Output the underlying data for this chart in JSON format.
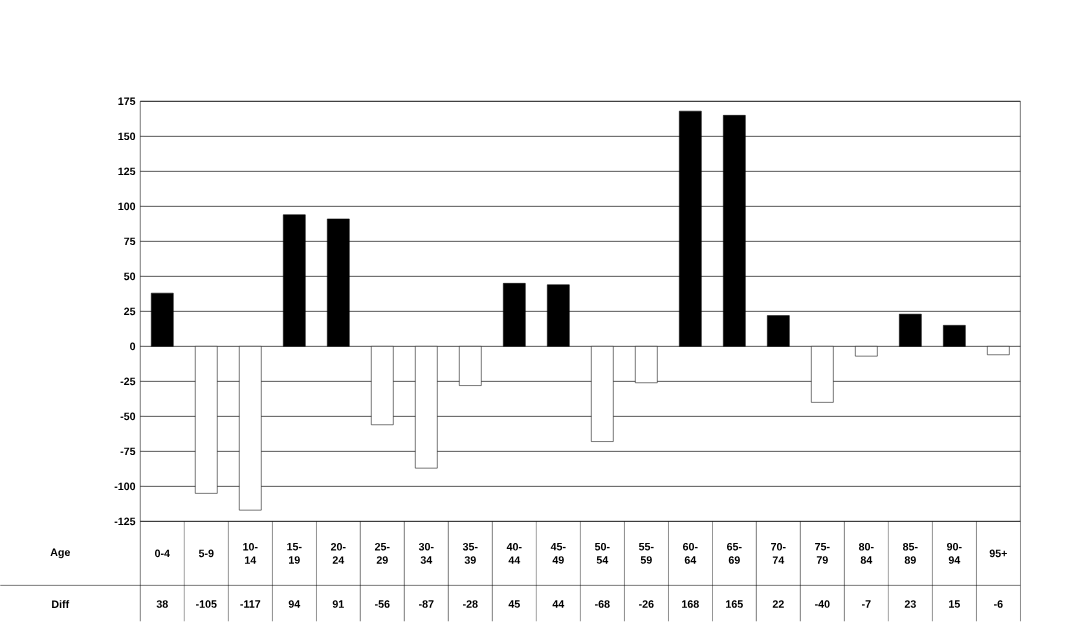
{
  "chart_data": {
    "type": "bar",
    "xlabel": "Age",
    "annotations": [
      "Diff"
    ],
    "categories": [
      "0-4",
      "5-9",
      "10-14",
      "15-19",
      "20-24",
      "25-29",
      "30-34",
      "35-39",
      "40-44",
      "45-49",
      "50-54",
      "55-59",
      "60-64",
      "65-69",
      "70-74",
      "75-79",
      "80-84",
      "85-89",
      "90-94",
      "95+"
    ],
    "values": [
      38,
      -105,
      -117,
      94,
      91,
      -56,
      -87,
      -28,
      45,
      44,
      -68,
      -26,
      168,
      165,
      22,
      -40,
      -7,
      23,
      15,
      -6
    ],
    "colors": [
      "#000000",
      "#ffffff",
      "#ffffff",
      "#000000",
      "#000000",
      "#ffffff",
      "#ffffff",
      "#ffffff",
      "#000000",
      "#000000",
      "#ffffff",
      "#ffffff",
      "#000000",
      "#000000",
      "#000000",
      "#ffffff",
      "#ffffff",
      "#000000",
      "#000000",
      "#ffffff"
    ],
    "ylim": [
      -125,
      175
    ],
    "yticks": [
      -125,
      -100,
      -75,
      -50,
      -25,
      0,
      25,
      50,
      75,
      100,
      125,
      150,
      175
    ],
    "grid": true,
    "data_labels": true
  }
}
